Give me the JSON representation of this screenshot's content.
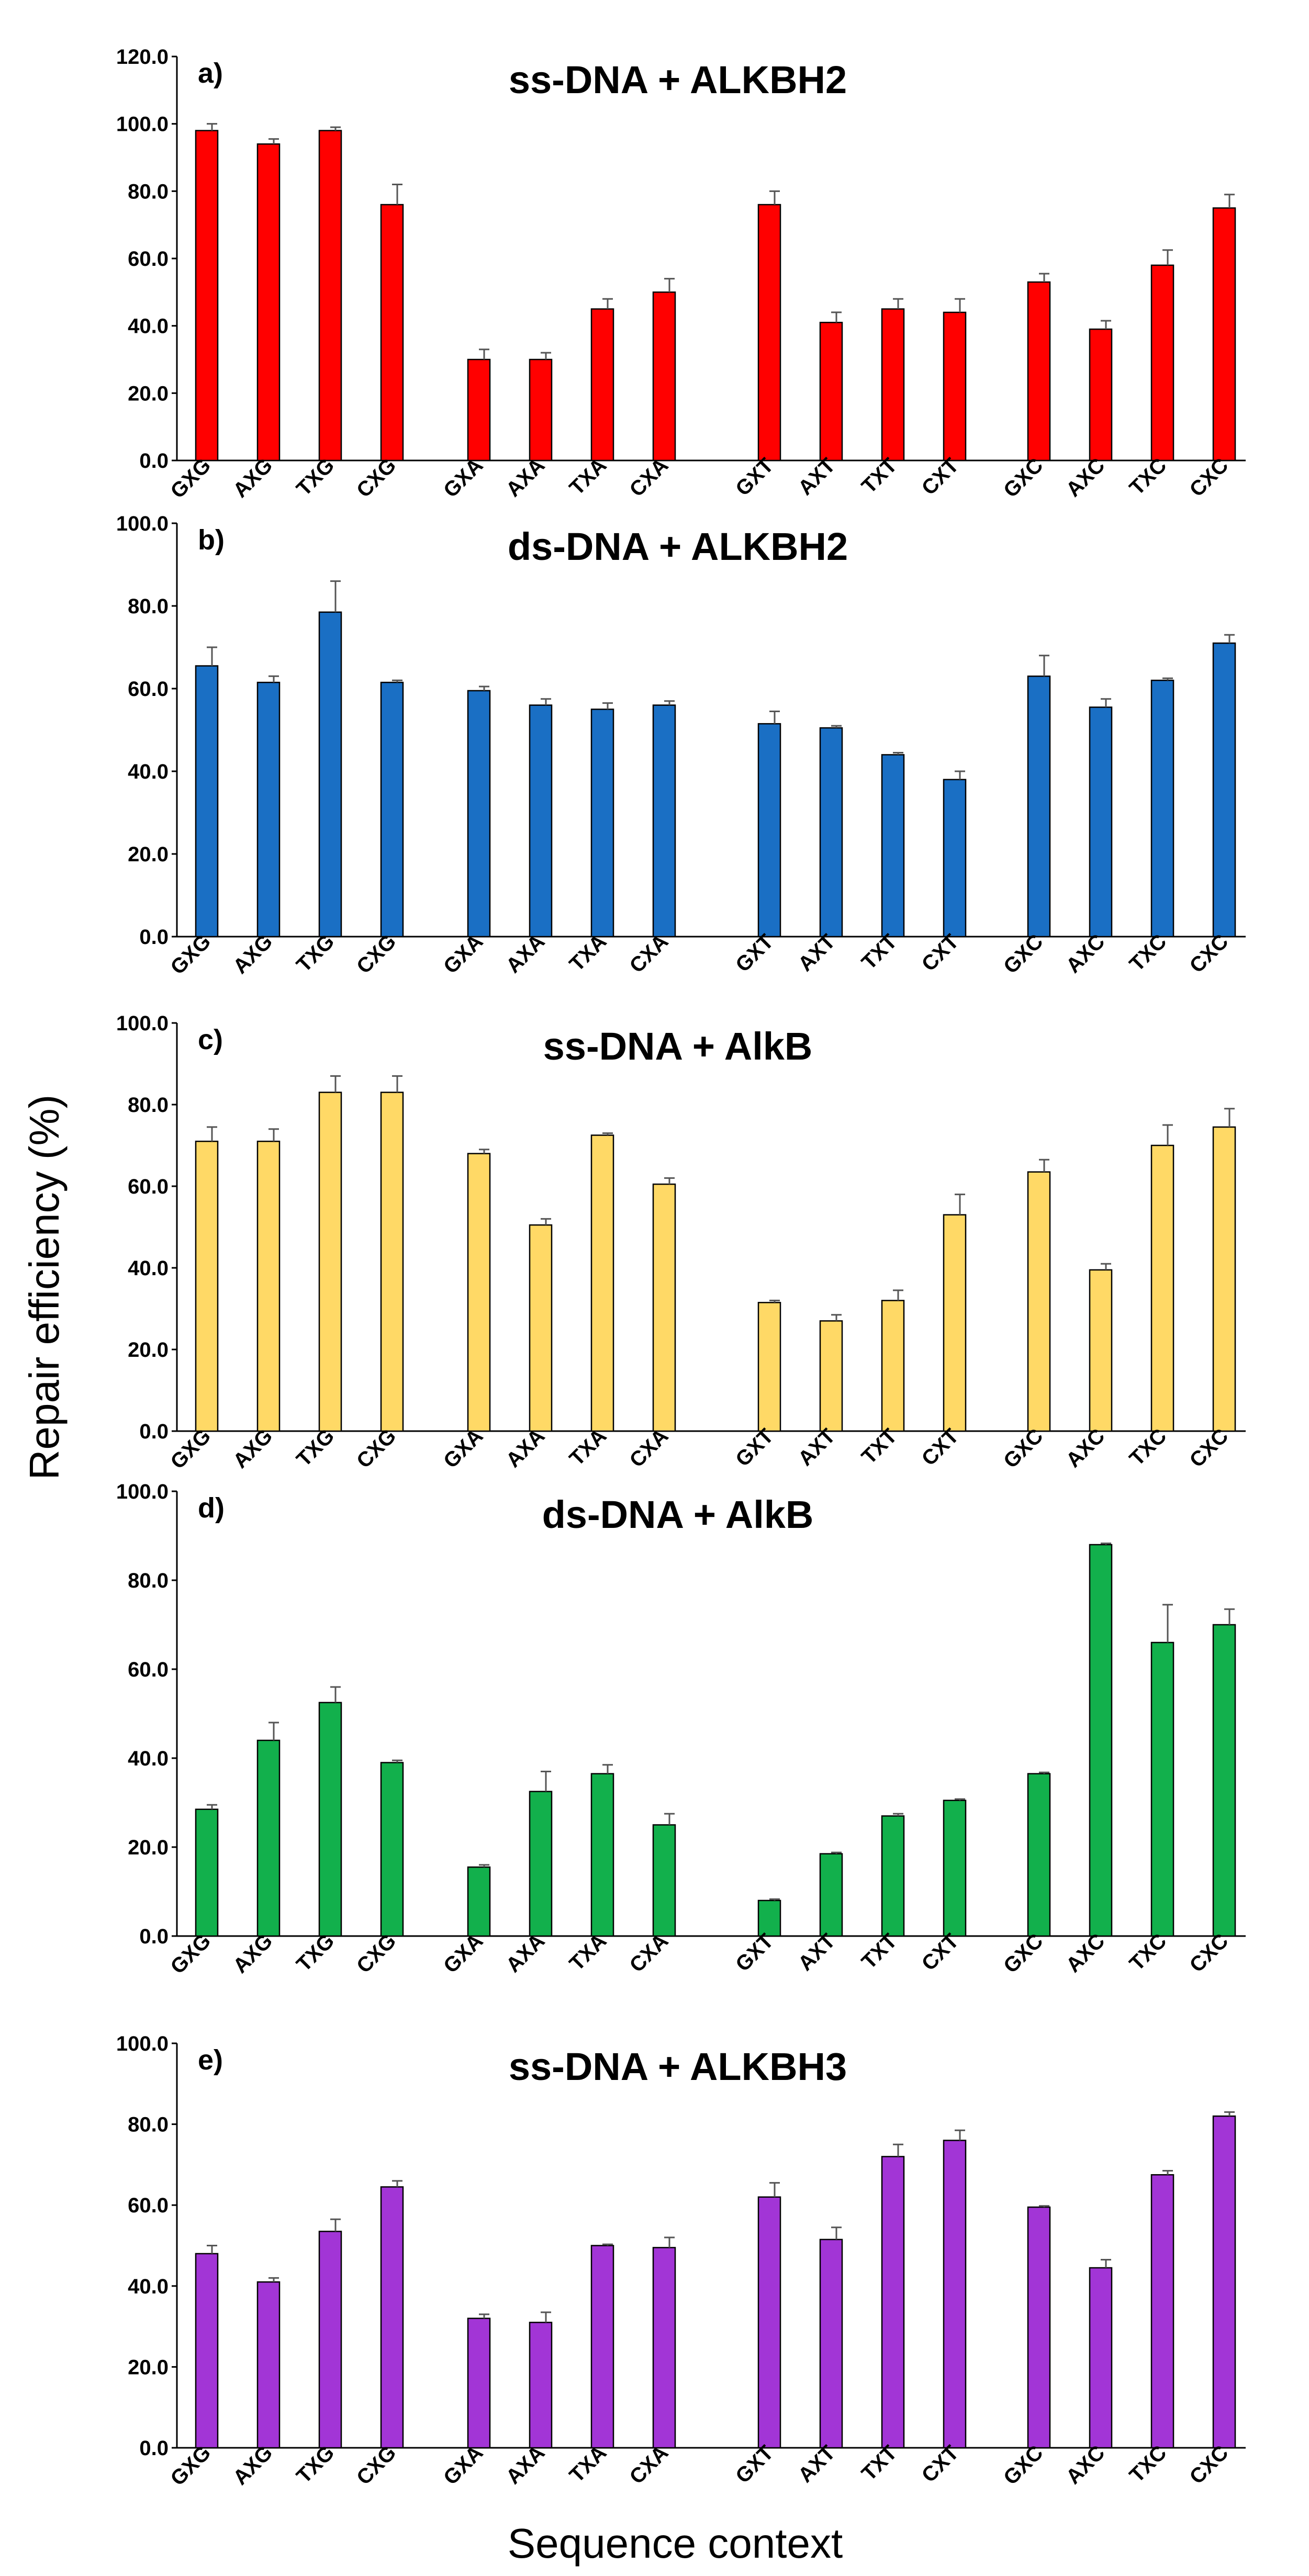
{
  "figure": {
    "ylabel": "Repair efficiency (%)",
    "xlabel": "Sequence context"
  },
  "chart_data": [
    {
      "type": "bar",
      "label": "a)",
      "title": "ss-DNA + ALKBH2",
      "color": "#ff0000",
      "ylim": [
        0,
        120
      ],
      "yticks": [
        "0.0",
        "20.0",
        "40.0",
        "60.0",
        "80.0",
        "100.0",
        "120.0"
      ],
      "groups": [
        {
          "categories": [
            "GXG",
            "AXG",
            "TXG",
            "CXG"
          ],
          "values": [
            98,
            94,
            98,
            76
          ],
          "errors": [
            2,
            1.5,
            1,
            6
          ]
        },
        {
          "categories": [
            "GXA",
            "AXA",
            "TXA",
            "CXA"
          ],
          "values": [
            30,
            30,
            45,
            50
          ],
          "errors": [
            3,
            2,
            3,
            4
          ]
        },
        {
          "categories": [
            "GXT",
            "AXT",
            "TXT",
            "CXT"
          ],
          "values": [
            76,
            41,
            45,
            44
          ],
          "errors": [
            4,
            3,
            3,
            4
          ]
        },
        {
          "categories": [
            "GXC",
            "AXC",
            "TXC",
            "CXC"
          ],
          "values": [
            53,
            39,
            58,
            75
          ],
          "errors": [
            2.5,
            2.5,
            4.5,
            4
          ]
        }
      ]
    },
    {
      "type": "bar",
      "label": "b)",
      "title": "ds-DNA + ALKBH2",
      "color": "#1a6fc4",
      "ylim": [
        0,
        100
      ],
      "yticks": [
        "0.0",
        "20.0",
        "40.0",
        "60.0",
        "80.0",
        "100.0"
      ],
      "groups": [
        {
          "categories": [
            "GXG",
            "AXG",
            "TXG",
            "CXG"
          ],
          "values": [
            65.5,
            61.5,
            78.5,
            61.5
          ],
          "errors": [
            4.5,
            1.5,
            7.5,
            0.5
          ]
        },
        {
          "categories": [
            "GXA",
            "AXA",
            "TXA",
            "CXA"
          ],
          "values": [
            59.5,
            56,
            55,
            56
          ],
          "errors": [
            1,
            1.5,
            1.5,
            1
          ]
        },
        {
          "categories": [
            "GXT",
            "AXT",
            "TXT",
            "CXT"
          ],
          "values": [
            51.5,
            50.5,
            44,
            38
          ],
          "errors": [
            3,
            0.5,
            0.5,
            2
          ]
        },
        {
          "categories": [
            "GXC",
            "AXC",
            "TXC",
            "CXC"
          ],
          "values": [
            63,
            55.5,
            62,
            71
          ],
          "errors": [
            5,
            2,
            0.5,
            2
          ]
        }
      ]
    },
    {
      "type": "bar",
      "label": "c)",
      "title": "ss-DNA + AlkB",
      "color": "#ffd966",
      "ylim": [
        0,
        100
      ],
      "yticks": [
        "0.0",
        "20.0",
        "40.0",
        "60.0",
        "80.0",
        "100.0"
      ],
      "groups": [
        {
          "categories": [
            "GXG",
            "AXG",
            "TXG",
            "CXG"
          ],
          "values": [
            71,
            71,
            83,
            83
          ],
          "errors": [
            3.5,
            3,
            4,
            4
          ]
        },
        {
          "categories": [
            "GXA",
            "AXA",
            "TXA",
            "CXA"
          ],
          "values": [
            68,
            50.5,
            72.5,
            60.5
          ],
          "errors": [
            1,
            1.5,
            0.5,
            1.5
          ]
        },
        {
          "categories": [
            "GXT",
            "AXT",
            "TXT",
            "CXT"
          ],
          "values": [
            31.5,
            27,
            32,
            53
          ],
          "errors": [
            0.5,
            1.5,
            2.5,
            5
          ]
        },
        {
          "categories": [
            "GXC",
            "AXC",
            "TXC",
            "CXC"
          ],
          "values": [
            63.5,
            39.5,
            70,
            74.5
          ],
          "errors": [
            3,
            1.5,
            5,
            4.5
          ]
        }
      ]
    },
    {
      "type": "bar",
      "label": "d)",
      "title": "ds-DNA + AlkB",
      "color": "#12b04c",
      "ylim": [
        0,
        100
      ],
      "yticks": [
        "0.0",
        "20.0",
        "40.0",
        "60.0",
        "80.0",
        "100.0"
      ],
      "groups": [
        {
          "categories": [
            "GXG",
            "AXG",
            "TXG",
            "CXG"
          ],
          "values": [
            28.5,
            44,
            52.5,
            39
          ],
          "errors": [
            1,
            4,
            3.5,
            0.5
          ]
        },
        {
          "categories": [
            "GXA",
            "AXA",
            "TXA",
            "CXA"
          ],
          "values": [
            15.5,
            32.5,
            36.5,
            25
          ],
          "errors": [
            0.5,
            4.5,
            2,
            2.5
          ]
        },
        {
          "categories": [
            "GXT",
            "AXT",
            "TXT",
            "CXT"
          ],
          "values": [
            8,
            18.5,
            27,
            30.5
          ],
          "errors": [
            0.3,
            0.3,
            0.5,
            0.3
          ]
        },
        {
          "categories": [
            "GXC",
            "AXC",
            "TXC",
            "CXC"
          ],
          "values": [
            36.5,
            88,
            66,
            70
          ],
          "errors": [
            0.3,
            0.3,
            8.5,
            3.5
          ]
        }
      ]
    },
    {
      "type": "bar",
      "label": "e)",
      "title": "ss-DNA + ALKBH3",
      "color": "#a235d6",
      "ylim": [
        0,
        100
      ],
      "yticks": [
        "0.0",
        "20.0",
        "40.0",
        "60.0",
        "80.0",
        "100.0"
      ],
      "groups": [
        {
          "categories": [
            "GXG",
            "AXG",
            "TXG",
            "CXG"
          ],
          "values": [
            48,
            41,
            53.5,
            64.5
          ],
          "errors": [
            2,
            1,
            3,
            1.5
          ]
        },
        {
          "categories": [
            "GXA",
            "AXA",
            "TXA",
            "CXA"
          ],
          "values": [
            32,
            31,
            50,
            49.5
          ],
          "errors": [
            1,
            2.5,
            0.3,
            2.5
          ]
        },
        {
          "categories": [
            "GXT",
            "AXT",
            "TXT",
            "CXT"
          ],
          "values": [
            62,
            51.5,
            72,
            76
          ],
          "errors": [
            3.5,
            3,
            3,
            2.5
          ]
        },
        {
          "categories": [
            "GXC",
            "AXC",
            "TXC",
            "CXC"
          ],
          "values": [
            59.5,
            44.5,
            67.5,
            82
          ],
          "errors": [
            0.3,
            2,
            1,
            1
          ]
        }
      ]
    }
  ]
}
